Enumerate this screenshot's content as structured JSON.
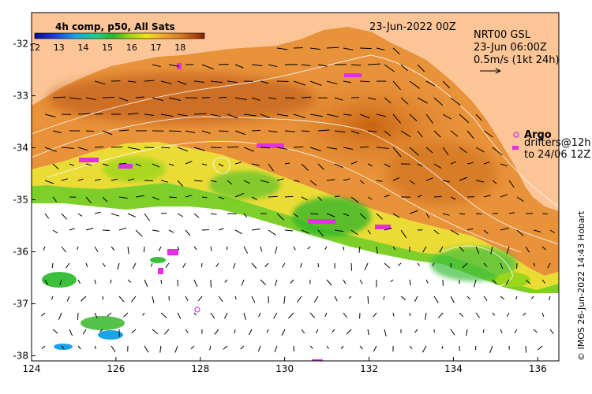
{
  "map": {
    "date_label": "23-Jun-2022 00Z",
    "product_line1": "NRT00 GSL",
    "product_line2": "23-Jun 06:00Z",
    "velocity_scale": "0.5m/s (1kt 24h)",
    "credit": "© IMOS 26-Jun-2022 14:43 Hobart",
    "colorbar": {
      "title": "4h comp, p50, All Sats",
      "ticks": [
        "12",
        "13",
        "14",
        "15",
        "16",
        "17",
        "18"
      ],
      "min": 12,
      "max": 19
    },
    "legend": {
      "argo_label": "Argo",
      "drifters_line1": "drifters@12h",
      "drifters_line2": "to 24/06 12Z",
      "argo_color": "#e030e0"
    },
    "x_ticks": [
      "124",
      "126",
      "128",
      "130",
      "132",
      "134",
      "136"
    ],
    "y_ticks": [
      "-32",
      "-33",
      "-34",
      "-35",
      "-36",
      "-37",
      "-38"
    ],
    "x_range": [
      124,
      136.5
    ],
    "y_range": [
      -38.1,
      -31.4
    ],
    "colors": {
      "land": "#fbc597",
      "cloud": "#ffffff",
      "colormap": [
        "#0b0b8e",
        "#1e3fd8",
        "#1aa3e6",
        "#1fcf8a",
        "#2bb52b",
        "#9cd61a",
        "#f0e21a",
        "#f2a531",
        "#d77a1e",
        "#b24a0c",
        "#8a1a06"
      ]
    }
  }
}
